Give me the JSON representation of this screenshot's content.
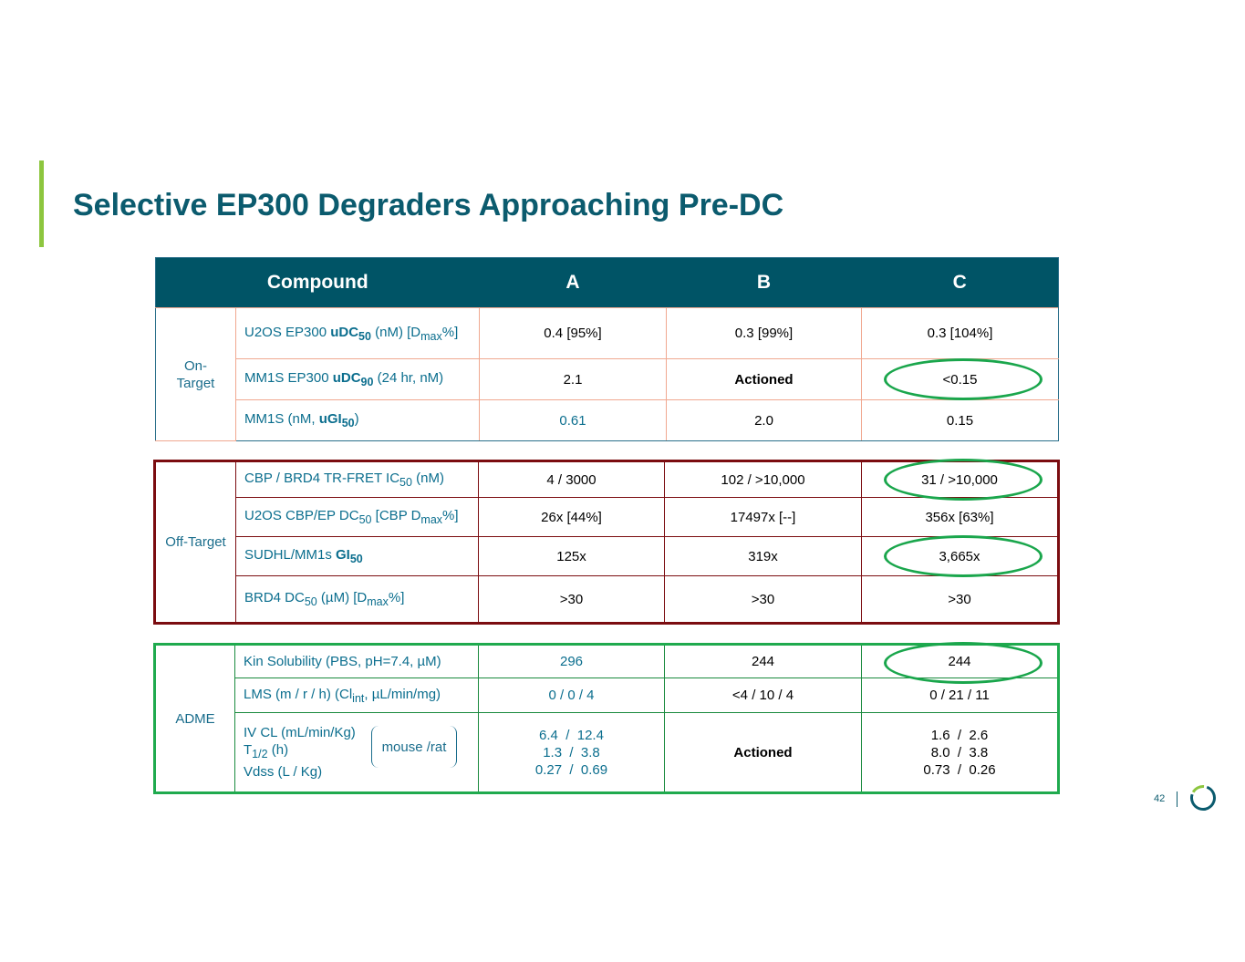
{
  "title": "Selective EP300 Degraders Approaching Pre-DC",
  "header": {
    "compound": "Compound",
    "a": "A",
    "b": "B",
    "c": "C"
  },
  "on_target": {
    "group": "On-Target",
    "rows": [
      {
        "p1": "U2OS EP300 ",
        "p2": "uDC",
        "p3": "50",
        "p4": " (nM) [D",
        "p5": "max",
        "p6": "%]",
        "a": "0.4 [95%]",
        "b": "0.3 [99%]",
        "c": "0.3 [104%]"
      },
      {
        "p1": "MM1S EP300 ",
        "p2": "uDC",
        "p3": "90",
        "p4": " (24 hr, nM)",
        "a": "2.1",
        "b": "Actioned",
        "c": "<0.15"
      },
      {
        "p1": "MM1S (nM, ",
        "p2": "uGI",
        "p3": "50",
        "p4": ")",
        "a": "0.61",
        "b": "2.0",
        "c": "0.15"
      }
    ]
  },
  "off_target": {
    "group": "Off-Target",
    "rows": [
      {
        "p1": "CBP / BRD4 TR-FRET IC",
        "p2": "50",
        "p3": " (nM)",
        "a": "4 / 3000",
        "b": "102 / >10,000",
        "c": "31 / >10,000"
      },
      {
        "p1": "U2OS CBP/EP DC",
        "p2": "50",
        "p3": " [CBP D",
        "p4": "max",
        "p5": "%]",
        "a": "26x [44%]",
        "b": "17497x [--]",
        "c": "356x [63%]"
      },
      {
        "p1": "SUDHL/MM1s ",
        "p2": "GI",
        "p3": "50",
        "a": "125x",
        "b": "319x",
        "c": "3,665x"
      },
      {
        "p1": "BRD4 DC",
        "p2": "50",
        "p3": " (µM) [D",
        "p4": "max",
        "p5": "%]",
        "a": ">30",
        "b": ">30",
        "c": ">30"
      }
    ]
  },
  "adme": {
    "group": "ADME",
    "rows": [
      {
        "p1": "Kin Solubility (PBS, pH=7.4, µM)",
        "a": "296",
        "b": "244",
        "c": "244"
      },
      {
        "p1": "LMS (m / r / h) (Cl",
        "p2": "int",
        "p3": ", µL/min/mg)",
        "a": "0 / 0 / 4",
        "b": "<4 / 10 / 4",
        "c": "0 / 21 / 11"
      }
    ],
    "pk": {
      "l1": "IV CL (mL/min/Kg)",
      "l2a": "T",
      "l2b": "1/2",
      "l2c": " (h)",
      "l3": "Vdss (L / Kg)",
      "bracket": "mouse /rat",
      "a": [
        "6.4  /  12.4",
        "1.3  /  3.8",
        "0.27  /  0.69"
      ],
      "b": "Actioned",
      "c": [
        "1.6  /  2.6",
        "8.0  /  3.8",
        "0.73  /  0.26"
      ]
    }
  },
  "page_number": "42",
  "colors": {
    "title": "#0b5b6e",
    "header_bg": "#005466",
    "accent": "#8dc63f",
    "off_border": "#7b0c10",
    "adme_border": "#1faa4e",
    "highlight": "#1aa64c"
  }
}
